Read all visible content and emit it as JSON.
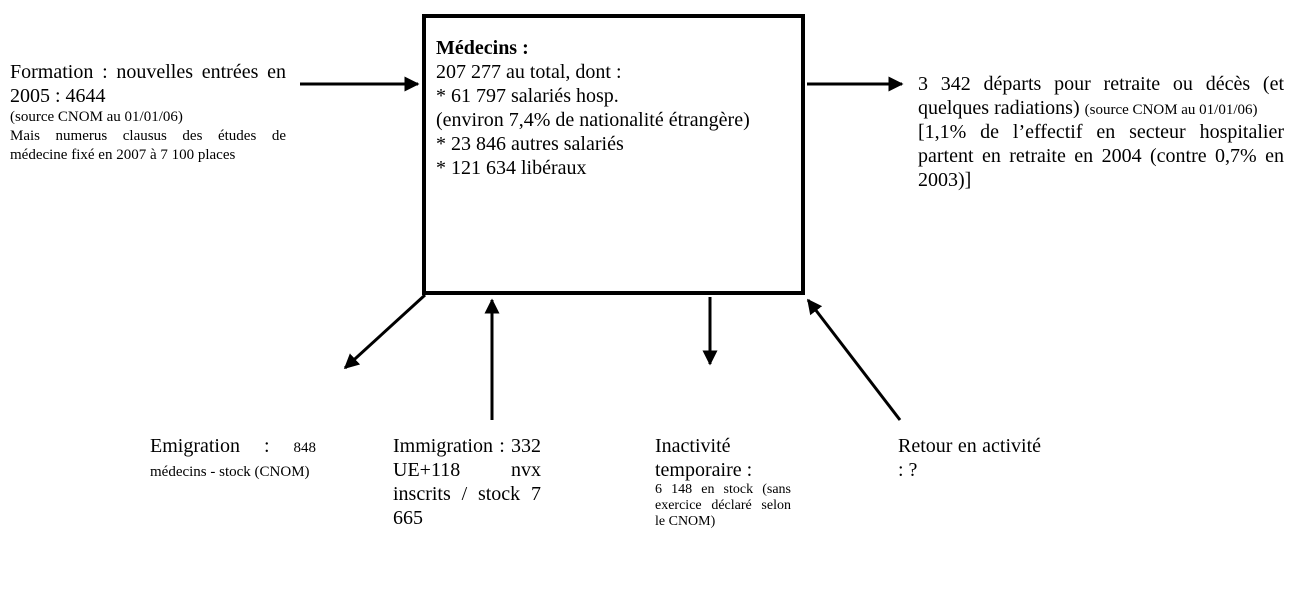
{
  "center": {
    "title": "Médecins :",
    "lines": [
      "207 277 au total, dont :",
      "* 61 797 salariés hosp.",
      "(environ 7,4% de nationalité étrangère)",
      "* 23 846 autres salariés",
      "* 121 634 libéraux"
    ]
  },
  "formation": {
    "text": "Formation : nouvelles entrées en 2005 : 4644",
    "source": "(source CNOM au 01/01/06)",
    "note": "Mais numerus clausus des études de médecine fixé en 2007 à 7 100 places"
  },
  "departs": {
    "text": "3 342 départs pour retraite ou décès (et quelques radiations)",
    "source": "(source CNOM au 01/01/06)",
    "note": "[1,1% de l’effectif en secteur hospitalier partent en retraite en 2004 (contre 0,7% en 2003)]"
  },
  "emigration": {
    "text": "Emigration :",
    "note": "848 médecins - stock (CNOM)"
  },
  "immigration": {
    "text": "Immigration : 332 UE+118 nvx inscrits / stock 7 665"
  },
  "inactivite": {
    "text": "Inactivité temporaire :",
    "note": "6 148 en stock (sans exercice déclaré selon le CNOM)"
  },
  "retour": {
    "text": "Retour en activité : ?"
  }
}
